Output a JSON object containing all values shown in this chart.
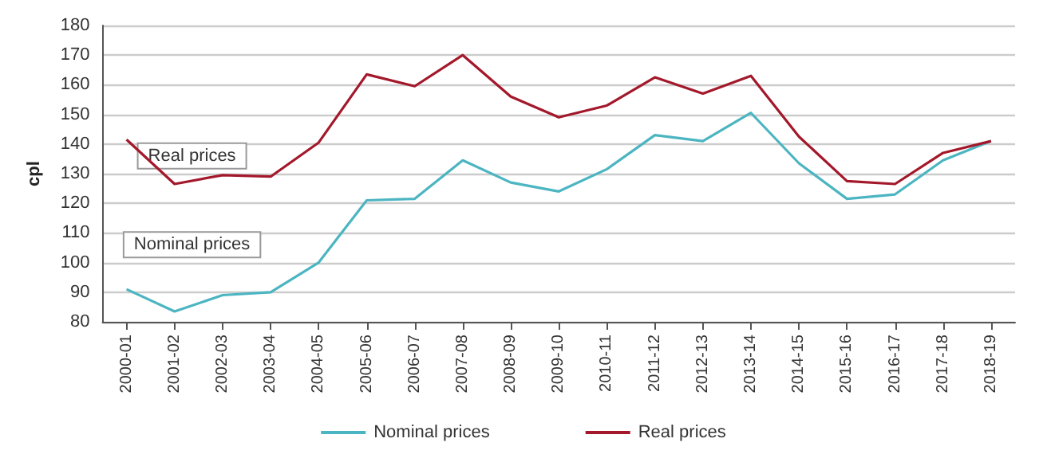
{
  "chart_data": {
    "type": "line",
    "ylabel": "cpl",
    "categories": [
      "2000-01",
      "2001-02",
      "2002-03",
      "2003-04",
      "2004-05",
      "2005-06",
      "2006-07",
      "2007-08",
      "2008-09",
      "2009-10",
      "2010-11",
      "2011-12",
      "2012-13",
      "2013-14",
      "2014-15",
      "2015-16",
      "2016-17",
      "2017-18",
      "2018-19"
    ],
    "series": [
      {
        "name": "Nominal prices",
        "color": "#4bb5c1",
        "values": [
          91,
          83.5,
          89,
          90,
          100,
          121,
          121.5,
          134.5,
          127,
          124,
          131.5,
          143,
          141,
          150.5,
          133.5,
          121.5,
          123,
          134.5,
          141
        ]
      },
      {
        "name": "Real prices",
        "color": "#a3182b",
        "values": [
          141.5,
          126.5,
          129.5,
          129,
          140.5,
          163.5,
          159.5,
          170,
          156,
          149,
          153,
          162.5,
          157,
          163,
          142.5,
          127.5,
          126.5,
          137,
          141
        ]
      }
    ],
    "annotations": [
      "Real prices",
      "Nominal prices"
    ],
    "ylim": [
      80,
      180
    ],
    "yticks": [
      80,
      90,
      100,
      110,
      120,
      130,
      140,
      150,
      160,
      170,
      180
    ],
    "grid": "y",
    "legend": "bottom",
    "marker": "none",
    "line_style": "solid"
  }
}
